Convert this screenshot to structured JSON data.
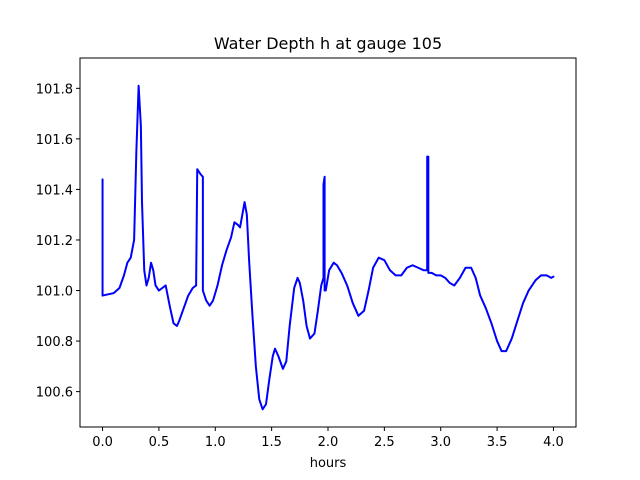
{
  "chart_data": {
    "type": "line",
    "title": "Water Depth h at gauge 105",
    "xlabel": "hours",
    "ylabel": "",
    "xlim": [
      -0.2,
      4.2
    ],
    "ylim": [
      100.46,
      101.92
    ],
    "xticks": [
      0.0,
      0.5,
      1.0,
      1.5,
      2.0,
      2.5,
      3.0,
      3.5,
      4.0
    ],
    "xtick_labels": [
      "0.0",
      "0.5",
      "1.0",
      "1.5",
      "2.0",
      "2.5",
      "3.0",
      "3.5",
      "4.0"
    ],
    "yticks": [
      100.6,
      100.8,
      101.0,
      101.2,
      101.4,
      101.6,
      101.8
    ],
    "ytick_labels": [
      "100.6",
      "100.8",
      "101.0",
      "101.2",
      "101.4",
      "101.6",
      "101.8"
    ],
    "grid": false,
    "series": [
      {
        "color": "#0000ff",
        "x": [
          0.0,
          0.0,
          0.0,
          0.05,
          0.1,
          0.15,
          0.19,
          0.22,
          0.25,
          0.28,
          0.3,
          0.32,
          0.34,
          0.35,
          0.37,
          0.39,
          0.41,
          0.43,
          0.45,
          0.47,
          0.5,
          0.53,
          0.56,
          0.6,
          0.63,
          0.66,
          0.68,
          0.72,
          0.76,
          0.8,
          0.83,
          0.84,
          0.84,
          0.87,
          0.89,
          0.89,
          0.92,
          0.95,
          0.98,
          1.02,
          1.06,
          1.1,
          1.14,
          1.17,
          1.2,
          1.22,
          1.24,
          1.26,
          1.28,
          1.3,
          1.33,
          1.36,
          1.39,
          1.42,
          1.45,
          1.48,
          1.51,
          1.53,
          1.56,
          1.6,
          1.63,
          1.66,
          1.7,
          1.73,
          1.75,
          1.78,
          1.81,
          1.84,
          1.88,
          1.91,
          1.94,
          1.96,
          1.96,
          1.97,
          1.97,
          1.98,
          2.01,
          2.05,
          2.08,
          2.12,
          2.17,
          2.22,
          2.27,
          2.32,
          2.36,
          2.4,
          2.45,
          2.5,
          2.55,
          2.6,
          2.65,
          2.7,
          2.75,
          2.8,
          2.85,
          2.88,
          2.88,
          2.89,
          2.89,
          2.92,
          2.96,
          3.0,
          3.04,
          3.08,
          3.12,
          3.17,
          3.22,
          3.27,
          3.31,
          3.35,
          3.4,
          3.45,
          3.5,
          3.54,
          3.58,
          3.63,
          3.68,
          3.73,
          3.78,
          3.84,
          3.89,
          3.94,
          3.98,
          4.0
        ],
        "y": [
          101.44,
          100.98,
          100.98,
          100.985,
          100.99,
          101.01,
          101.06,
          101.11,
          101.13,
          101.2,
          101.55,
          101.81,
          101.65,
          101.35,
          101.08,
          101.02,
          101.05,
          101.11,
          101.08,
          101.02,
          101.0,
          101.01,
          101.02,
          100.93,
          100.87,
          100.86,
          100.88,
          100.93,
          100.98,
          101.01,
          101.02,
          101.48,
          101.48,
          101.46,
          101.45,
          101.0,
          100.96,
          100.94,
          100.96,
          101.02,
          101.1,
          101.16,
          101.21,
          101.27,
          101.26,
          101.25,
          101.3,
          101.35,
          101.3,
          101.12,
          100.9,
          100.7,
          100.57,
          100.53,
          100.55,
          100.65,
          100.74,
          100.77,
          100.74,
          100.69,
          100.72,
          100.86,
          101.01,
          101.05,
          101.03,
          100.96,
          100.86,
          100.81,
          100.83,
          100.92,
          101.02,
          101.05,
          101.42,
          101.45,
          101.0,
          101.0,
          101.08,
          101.11,
          101.1,
          101.07,
          101.02,
          100.95,
          100.9,
          100.92,
          101.0,
          101.09,
          101.13,
          101.12,
          101.08,
          101.06,
          101.06,
          101.09,
          101.1,
          101.09,
          101.08,
          101.08,
          101.53,
          101.53,
          101.07,
          101.07,
          101.06,
          101.06,
          101.05,
          101.03,
          101.02,
          101.05,
          101.09,
          101.09,
          101.05,
          100.98,
          100.93,
          100.87,
          100.8,
          100.76,
          100.76,
          100.81,
          100.88,
          100.95,
          101.0,
          101.04,
          101.06,
          101.06,
          101.05,
          101.055
        ]
      }
    ]
  }
}
